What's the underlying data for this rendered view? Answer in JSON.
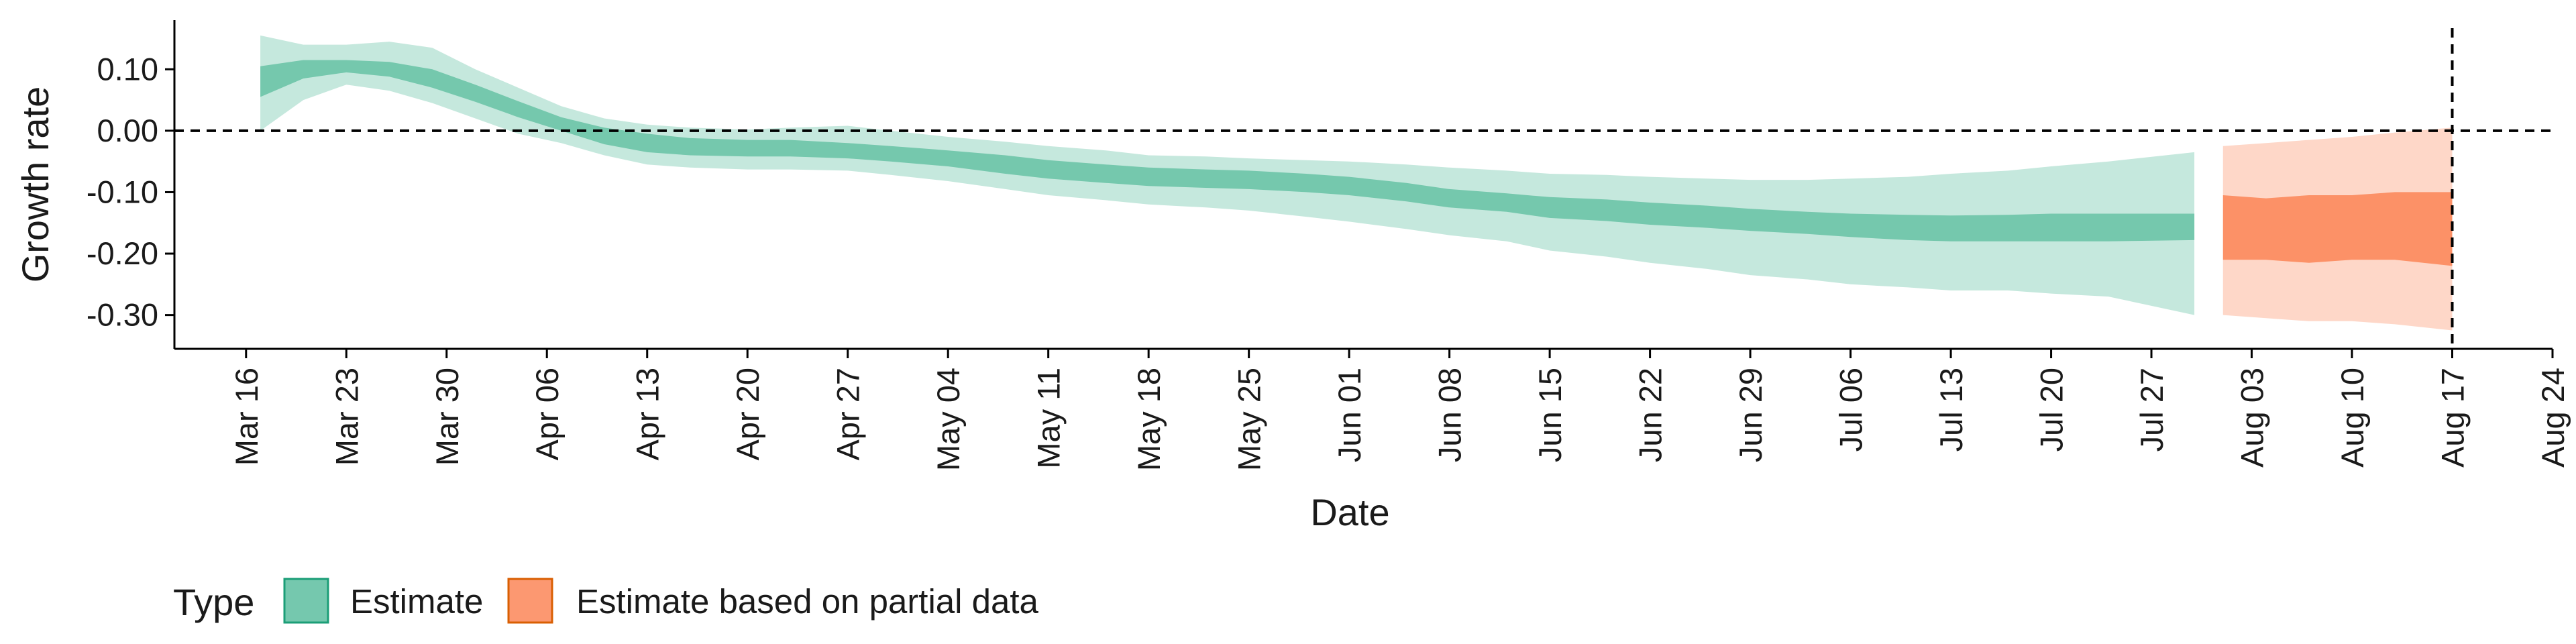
{
  "chart_data": {
    "type": "area",
    "xlabel": "Date",
    "ylabel": "Growth rate",
    "ylim": [
      -0.355,
      0.18
    ],
    "xlim": [
      "2020-03-11",
      "2020-08-24"
    ],
    "x_ticks": [
      "2020-03-16",
      "2020-03-23",
      "2020-03-30",
      "2020-04-06",
      "2020-04-13",
      "2020-04-20",
      "2020-04-27",
      "2020-05-04",
      "2020-05-11",
      "2020-05-18",
      "2020-05-25",
      "2020-06-01",
      "2020-06-08",
      "2020-06-15",
      "2020-06-22",
      "2020-06-29",
      "2020-07-06",
      "2020-07-13",
      "2020-07-20",
      "2020-07-27",
      "2020-08-03",
      "2020-08-10",
      "2020-08-17",
      "2020-08-24"
    ],
    "x_tick_labels": [
      "Mar 16",
      "Mar 23",
      "Mar 30",
      "Apr 06",
      "Apr 13",
      "Apr 20",
      "Apr 27",
      "May 04",
      "May 11",
      "May 18",
      "May 25",
      "Jun 01",
      "Jun 08",
      "Jun 15",
      "Jun 22",
      "Jun 29",
      "Jul 06",
      "Jul 13",
      "Jul 20",
      "Jul 27",
      "Aug 03",
      "Aug 10",
      "Aug 17",
      "Aug 24"
    ],
    "y_ticks": [
      0.1,
      0.0,
      -0.1,
      -0.2,
      -0.3
    ],
    "y_tick_labels": [
      "0.10",
      "0.00",
      "-0.10",
      "-0.20",
      "-0.30"
    ],
    "hline": 0,
    "vline": "2020-08-17",
    "legend": {
      "title": "Type",
      "position": "bottom-left",
      "items": [
        {
          "label": "Estimate",
          "color": "#66c2a5"
        },
        {
          "label": "Estimate based on partial data",
          "color": "#fc8d62"
        }
      ]
    },
    "series": [
      {
        "name": "Estimate",
        "color": "#66c2a5",
        "x": [
          "2020-03-17",
          "2020-03-20",
          "2020-03-23",
          "2020-03-26",
          "2020-03-29",
          "2020-04-01",
          "2020-04-04",
          "2020-04-07",
          "2020-04-10",
          "2020-04-13",
          "2020-04-16",
          "2020-04-20",
          "2020-04-23",
          "2020-04-27",
          "2020-04-30",
          "2020-05-04",
          "2020-05-08",
          "2020-05-11",
          "2020-05-15",
          "2020-05-18",
          "2020-05-22",
          "2020-05-25",
          "2020-05-29",
          "2020-06-01",
          "2020-06-05",
          "2020-06-08",
          "2020-06-12",
          "2020-06-15",
          "2020-06-19",
          "2020-06-22",
          "2020-06-26",
          "2020-06-29",
          "2020-07-03",
          "2020-07-06",
          "2020-07-10",
          "2020-07-13",
          "2020-07-17",
          "2020-07-20",
          "2020-07-24",
          "2020-07-30"
        ],
        "median": [
          0.08,
          0.1,
          0.105,
          0.1,
          0.085,
          0.06,
          0.035,
          0.01,
          -0.008,
          -0.02,
          -0.025,
          -0.028,
          -0.03,
          -0.032,
          -0.038,
          -0.045,
          -0.055,
          -0.063,
          -0.07,
          -0.075,
          -0.078,
          -0.08,
          -0.085,
          -0.09,
          -0.1,
          -0.11,
          -0.117,
          -0.125,
          -0.13,
          -0.135,
          -0.14,
          -0.145,
          -0.15,
          -0.155,
          -0.158,
          -0.16,
          -0.158,
          -0.157,
          -0.158,
          -0.158
        ],
        "inner_lower": [
          0.055,
          0.085,
          0.095,
          0.088,
          0.07,
          0.047,
          0.022,
          0.0,
          -0.022,
          -0.035,
          -0.04,
          -0.042,
          -0.042,
          -0.045,
          -0.05,
          -0.058,
          -0.07,
          -0.078,
          -0.085,
          -0.09,
          -0.093,
          -0.095,
          -0.1,
          -0.105,
          -0.115,
          -0.125,
          -0.132,
          -0.142,
          -0.147,
          -0.153,
          -0.158,
          -0.163,
          -0.168,
          -0.173,
          -0.178,
          -0.18,
          -0.18,
          -0.18,
          -0.18,
          -0.178
        ],
        "inner_upper": [
          0.105,
          0.115,
          0.115,
          0.112,
          0.1,
          0.075,
          0.048,
          0.022,
          0.005,
          -0.005,
          -0.012,
          -0.015,
          -0.015,
          -0.02,
          -0.025,
          -0.032,
          -0.04,
          -0.048,
          -0.055,
          -0.06,
          -0.063,
          -0.065,
          -0.07,
          -0.075,
          -0.085,
          -0.095,
          -0.102,
          -0.108,
          -0.112,
          -0.117,
          -0.122,
          -0.127,
          -0.132,
          -0.135,
          -0.137,
          -0.138,
          -0.137,
          -0.135,
          -0.135,
          -0.135
        ],
        "outer_lower": [
          0.0,
          0.05,
          0.075,
          0.065,
          0.045,
          0.02,
          -0.005,
          -0.02,
          -0.04,
          -0.055,
          -0.06,
          -0.063,
          -0.063,
          -0.065,
          -0.072,
          -0.082,
          -0.095,
          -0.105,
          -0.113,
          -0.12,
          -0.125,
          -0.13,
          -0.14,
          -0.148,
          -0.16,
          -0.17,
          -0.18,
          -0.195,
          -0.205,
          -0.215,
          -0.225,
          -0.235,
          -0.242,
          -0.25,
          -0.255,
          -0.26,
          -0.26,
          -0.265,
          -0.27,
          -0.3
        ],
        "outer_upper": [
          0.155,
          0.14,
          0.14,
          0.145,
          0.135,
          0.1,
          0.07,
          0.04,
          0.02,
          0.01,
          0.005,
          0.002,
          0.005,
          0.008,
          0.0,
          -0.01,
          -0.018,
          -0.025,
          -0.032,
          -0.04,
          -0.042,
          -0.045,
          -0.048,
          -0.05,
          -0.055,
          -0.06,
          -0.065,
          -0.07,
          -0.072,
          -0.075,
          -0.078,
          -0.08,
          -0.08,
          -0.078,
          -0.075,
          -0.07,
          -0.065,
          -0.058,
          -0.05,
          -0.035
        ]
      },
      {
        "name": "Estimate based on partial data",
        "color": "#fc8d62",
        "x": [
          "2020-08-01",
          "2020-08-04",
          "2020-08-07",
          "2020-08-10",
          "2020-08-13",
          "2020-08-17"
        ],
        "median": [
          -0.155,
          -0.16,
          -0.16,
          -0.155,
          -0.155,
          -0.158
        ],
        "inner_lower": [
          -0.21,
          -0.21,
          -0.215,
          -0.21,
          -0.21,
          -0.22
        ],
        "inner_upper": [
          -0.105,
          -0.11,
          -0.105,
          -0.105,
          -0.1,
          -0.1
        ],
        "outer_lower": [
          -0.3,
          -0.305,
          -0.31,
          -0.31,
          -0.315,
          -0.325
        ],
        "outer_upper": [
          -0.025,
          -0.02,
          -0.015,
          -0.01,
          -0.003,
          0.005
        ]
      }
    ]
  }
}
